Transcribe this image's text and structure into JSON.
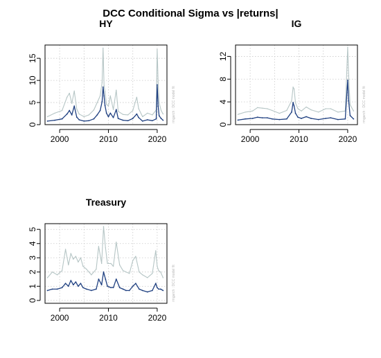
{
  "figure": {
    "title": "DCC Conditional Sigma vs |returns|",
    "colors": {
      "returns": "#b5c5c5",
      "sigma": "#1e3f80",
      "grid": "#c8c8c8",
      "frame": "#000000"
    }
  },
  "chart_data": [
    {
      "type": "line",
      "title": "HY",
      "watermark": "rmgarch : DCC model fit",
      "xlim": [
        1997,
        2022
      ],
      "ylim": [
        0,
        18
      ],
      "xticks": [
        2000,
        2010,
        2020
      ],
      "yticks": [
        0,
        5,
        10,
        15
      ],
      "grid": true,
      "series": [
        {
          "role": "abs_returns",
          "x": [
            1997.5,
            1999,
            2000.5,
            2001.5,
            2002.0,
            2002.5,
            2003.0,
            2003.5,
            2004,
            2005,
            2006,
            2007,
            2007.7,
            2008.3,
            2008.7,
            2008.9,
            2009.1,
            2009.3,
            2009.6,
            2010.0,
            2010.4,
            2011,
            2011.6,
            2012,
            2013,
            2014,
            2015,
            2015.8,
            2016.2,
            2017,
            2018,
            2019,
            2019.8,
            2020.0,
            2020.2,
            2020.4,
            2020.8,
            2021.2
          ],
          "values": [
            1.8,
            2.6,
            3.2,
            6.2,
            7.1,
            4.8,
            7.6,
            3.5,
            2.4,
            1.8,
            2.2,
            3.3,
            5.0,
            6.5,
            9.5,
            17.3,
            8.8,
            7.5,
            4.6,
            4.2,
            6.5,
            3.4,
            7.8,
            3.0,
            2.3,
            2.2,
            3.2,
            6.2,
            3.6,
            1.8,
            2.6,
            2.2,
            3.3,
            17.0,
            9.5,
            5.0,
            3.2,
            2.4
          ]
        },
        {
          "role": "sigma",
          "x": [
            1997.5,
            1999,
            2000.5,
            2001.5,
            2002.0,
            2002.5,
            2003.0,
            2003.5,
            2004,
            2005,
            2006,
            2007,
            2007.7,
            2008.3,
            2008.7,
            2008.9,
            2009.1,
            2009.3,
            2009.6,
            2010.0,
            2010.4,
            2011,
            2011.6,
            2012,
            2013,
            2014,
            2015,
            2015.8,
            2016.2,
            2017,
            2018,
            2019,
            2019.8,
            2020.0,
            2020.2,
            2020.4,
            2020.8,
            2021.2
          ],
          "values": [
            0.8,
            1.0,
            1.3,
            2.4,
            3.2,
            2.2,
            4.2,
            1.7,
            1.1,
            0.8,
            0.9,
            1.3,
            2.2,
            3.2,
            5.2,
            8.5,
            6.5,
            4.3,
            2.6,
            1.8,
            2.6,
            1.6,
            3.4,
            1.4,
            1.0,
            0.9,
            1.4,
            2.4,
            1.6,
            0.8,
            1.1,
            0.9,
            1.3,
            9.0,
            4.2,
            2.0,
            1.4,
            1.0
          ]
        }
      ]
    },
    {
      "type": "line",
      "title": "IG",
      "watermark": "rmgarch : DCC model fit",
      "xlim": [
        1997,
        2022
      ],
      "ylim": [
        0,
        14
      ],
      "xticks": [
        2000,
        2010,
        2020
      ],
      "yticks": [
        0,
        4,
        8,
        12
      ],
      "grid": true,
      "series": [
        {
          "role": "abs_returns",
          "x": [
            1997.5,
            1999,
            2000.5,
            2001.5,
            2002.5,
            2003.5,
            2004.5,
            2006,
            2007.5,
            2008.5,
            2008.8,
            2009.0,
            2009.3,
            2009.8,
            2010.5,
            2011.5,
            2012.5,
            2014,
            2015.5,
            2016.5,
            2018,
            2019.5,
            2020.0,
            2020.2,
            2020.5,
            2021.2
          ],
          "values": [
            1.8,
            2.2,
            2.4,
            3.0,
            2.9,
            2.8,
            2.5,
            2.0,
            2.5,
            4.2,
            6.6,
            6.3,
            3.8,
            2.8,
            2.4,
            3.1,
            2.6,
            2.2,
            2.8,
            2.8,
            2.2,
            2.4,
            13.6,
            8.6,
            3.5,
            2.4
          ]
        },
        {
          "role": "sigma",
          "x": [
            1997.5,
            1999,
            2000.5,
            2001.5,
            2002.5,
            2003.5,
            2004.5,
            2006,
            2007.5,
            2008.5,
            2008.8,
            2009.0,
            2009.3,
            2009.8,
            2010.5,
            2011.5,
            2012.5,
            2014,
            2015.5,
            2016.5,
            2018,
            2019.5,
            2020.0,
            2020.2,
            2020.5,
            2021.2
          ],
          "values": [
            0.8,
            1.0,
            1.1,
            1.3,
            1.2,
            1.2,
            1.0,
            0.9,
            1.0,
            2.2,
            3.9,
            3.3,
            2.0,
            1.3,
            1.1,
            1.4,
            1.1,
            0.9,
            1.1,
            1.2,
            0.9,
            1.0,
            7.8,
            4.2,
            1.6,
            1.0
          ]
        }
      ]
    },
    {
      "type": "line",
      "title": "Treasury",
      "watermark": "rmgarch : DCC model fit",
      "xlim": [
        1997,
        2022
      ],
      "ylim": [
        -0.2,
        5.4
      ],
      "xticks": [
        2000,
        2010,
        2020
      ],
      "yticks": [
        0,
        1,
        2,
        3,
        4,
        5
      ],
      "grid": true,
      "series": [
        {
          "role": "abs_returns",
          "x": [
            1997.5,
            1998.5,
            1999.5,
            2000.5,
            2001.2,
            2001.8,
            2002.3,
            2002.8,
            2003.3,
            2003.8,
            2004.3,
            2004.8,
            2005.5,
            2006.5,
            2007.5,
            2008.0,
            2008.6,
            2009.0,
            2009.4,
            2009.8,
            2010.5,
            2011.0,
            2011.6,
            2012.3,
            2013.0,
            2013.6,
            2014.3,
            2015.0,
            2015.6,
            2016.3,
            2017.0,
            2018.0,
            2019.0,
            2019.7,
            2020.0,
            2020.3,
            2020.7,
            2021.2
          ],
          "values": [
            1.6,
            2.0,
            1.8,
            2.1,
            3.6,
            2.5,
            3.3,
            2.9,
            3.1,
            2.7,
            3.0,
            2.4,
            2.2,
            1.8,
            2.2,
            3.8,
            2.6,
            5.2,
            3.7,
            2.6,
            2.6,
            2.4,
            4.1,
            2.5,
            2.1,
            2.0,
            1.9,
            2.8,
            3.1,
            2.0,
            1.8,
            1.6,
            1.9,
            3.5,
            2.4,
            2.1,
            2.0,
            1.6
          ]
        },
        {
          "role": "sigma",
          "x": [
            1997.5,
            1998.5,
            1999.5,
            2000.5,
            2001.2,
            2001.8,
            2002.3,
            2002.8,
            2003.3,
            2003.8,
            2004.3,
            2004.8,
            2005.5,
            2006.5,
            2007.5,
            2008.0,
            2008.6,
            2009.0,
            2009.4,
            2009.8,
            2010.5,
            2011.0,
            2011.6,
            2012.3,
            2013.0,
            2013.6,
            2014.3,
            2015.0,
            2015.6,
            2016.3,
            2017.0,
            2018.0,
            2019.0,
            2019.7,
            2020.0,
            2020.3,
            2020.7,
            2021.2
          ],
          "values": [
            0.7,
            0.8,
            0.8,
            0.9,
            1.2,
            1.0,
            1.4,
            1.1,
            1.3,
            1.0,
            1.2,
            0.9,
            0.8,
            0.7,
            0.8,
            1.5,
            1.1,
            2.0,
            1.5,
            1.0,
            0.9,
            0.9,
            1.5,
            0.9,
            0.8,
            0.7,
            0.7,
            1.0,
            1.2,
            0.8,
            0.7,
            0.6,
            0.7,
            1.2,
            0.9,
            0.8,
            0.8,
            0.7
          ]
        }
      ]
    }
  ]
}
